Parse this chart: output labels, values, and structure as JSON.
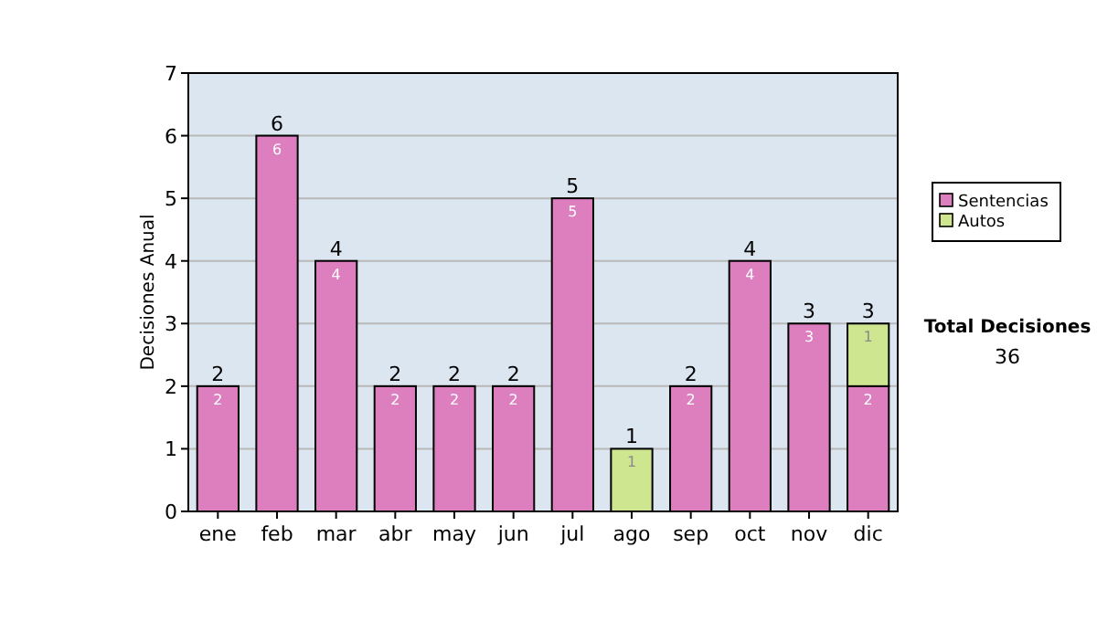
{
  "chart_data": {
    "type": "bar",
    "ylabel": "Decisiones Anual",
    "categories": [
      "ene",
      "feb",
      "mar",
      "abr",
      "may",
      "jun",
      "jul",
      "ago",
      "sep",
      "oct",
      "nov",
      "dic"
    ],
    "series": [
      {
        "name": "Sentencias",
        "color": "#dd7fbf",
        "values": [
          2,
          6,
          4,
          2,
          2,
          2,
          5,
          0,
          2,
          4,
          3,
          2
        ],
        "value_labels": [
          "2",
          "6",
          "4",
          "2",
          "2",
          "2",
          "5",
          null,
          "2",
          "4",
          "3",
          "2"
        ]
      },
      {
        "name": "Autos",
        "color": "#cde68f",
        "values": [
          null,
          null,
          null,
          null,
          null,
          null,
          null,
          1,
          null,
          null,
          null,
          1
        ],
        "value_labels": [
          null,
          null,
          null,
          null,
          null,
          null,
          null,
          "1",
          null,
          null,
          null,
          "1"
        ]
      }
    ],
    "stacked": true,
    "totals": [
      "2",
      "6",
      "4",
      "2",
      "2",
      "2",
      "5",
      "1",
      "2",
      "4",
      "3",
      "3"
    ],
    "ylim": [
      0,
      7
    ],
    "yticks": [
      0,
      1,
      2,
      3,
      4,
      5,
      6,
      7
    ],
    "grid": "y",
    "legend": "right",
    "annotations": [
      "Total Decisiones",
      "36"
    ]
  }
}
